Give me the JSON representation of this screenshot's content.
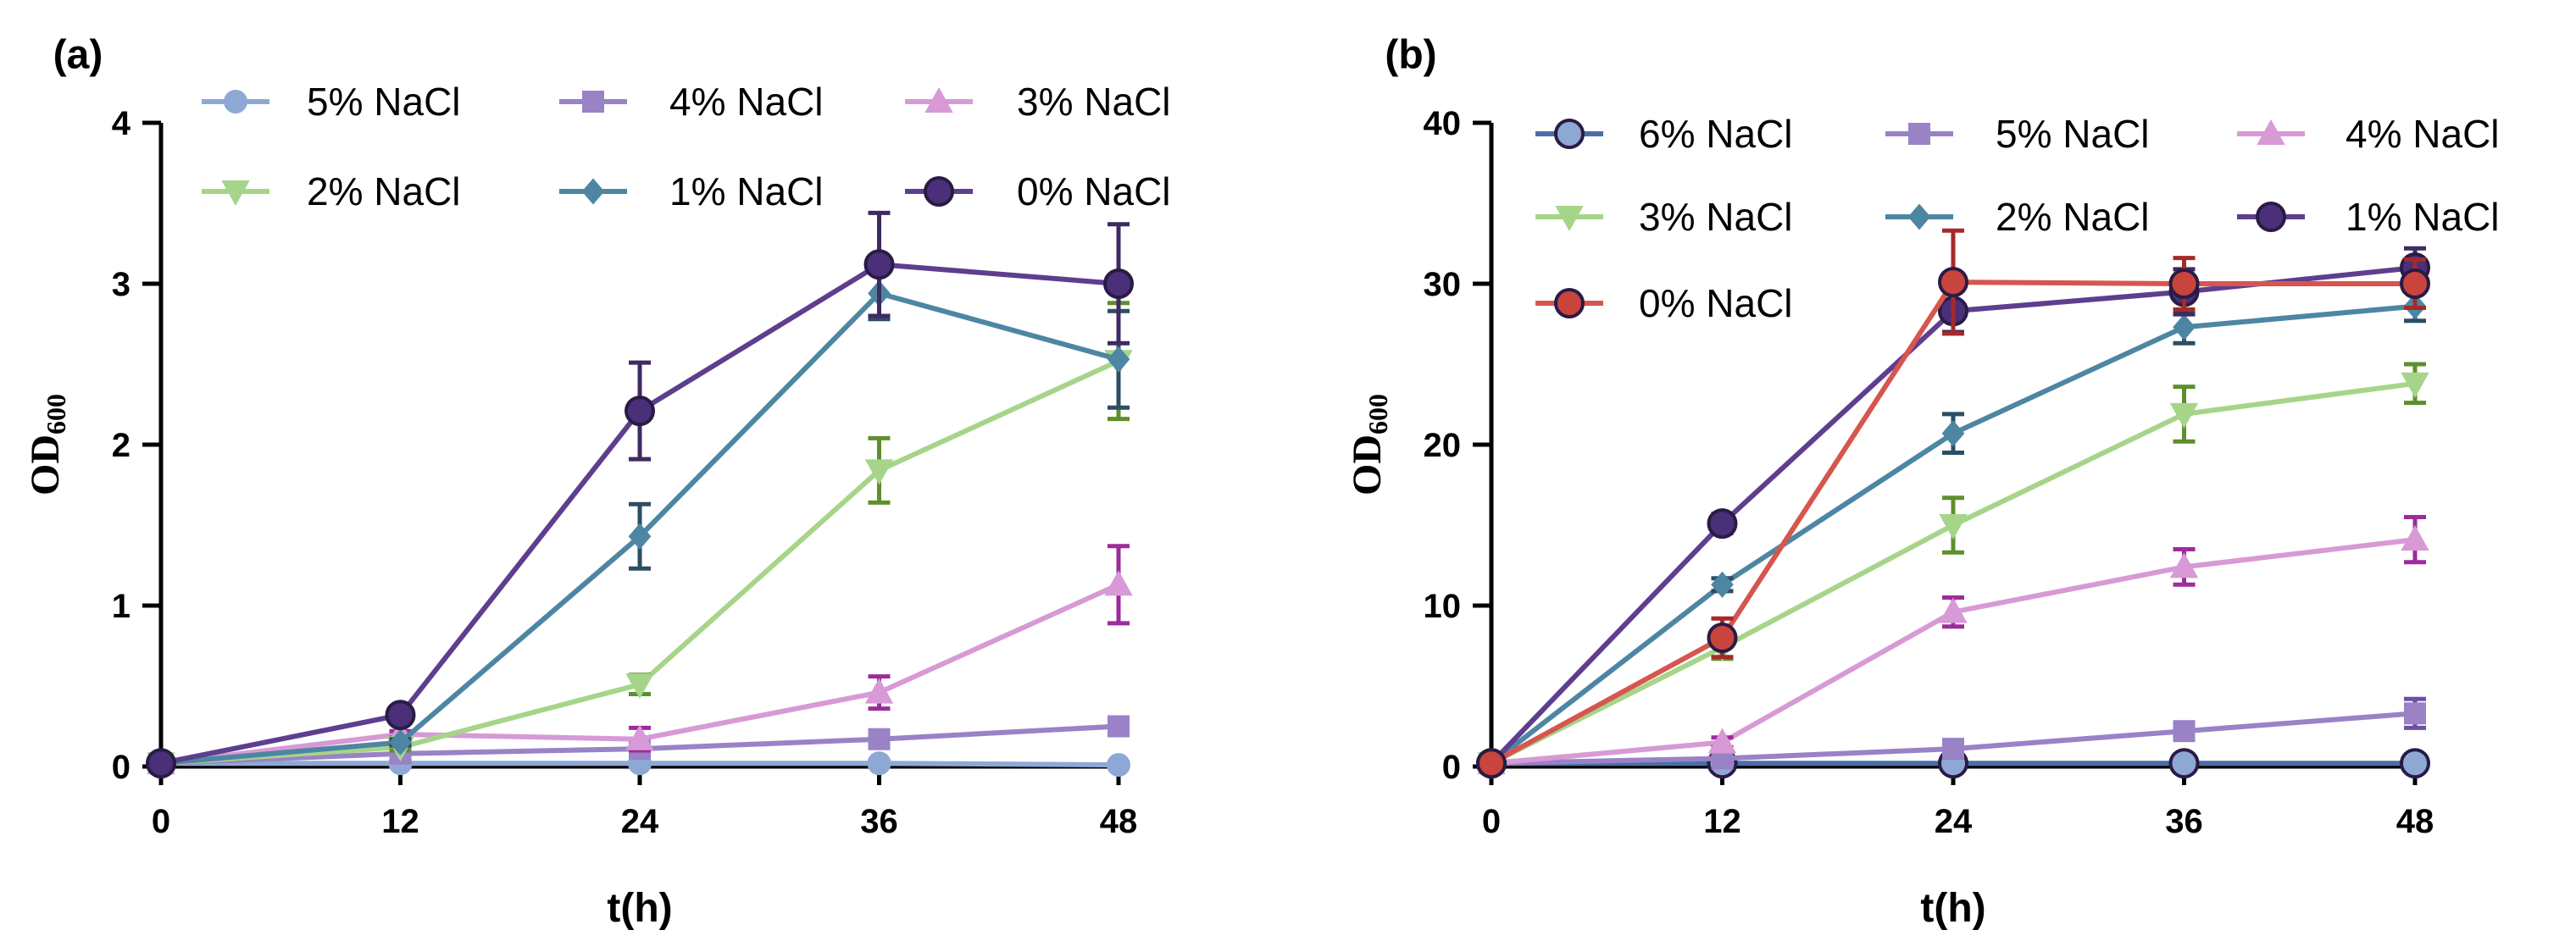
{
  "chart_data": [
    {
      "type": "line",
      "panel_label": "(a)",
      "xlabel": "t(h)",
      "ylabel": "OD",
      "ylabel_subscript": "600",
      "x": [
        0,
        12,
        24,
        36,
        48
      ],
      "xticks": [
        "0",
        "12",
        "24",
        "36",
        "48"
      ],
      "xlim": [
        0,
        48
      ],
      "yticks": [
        "0",
        "1",
        "2",
        "3",
        "4"
      ],
      "ylim": [
        0,
        4
      ],
      "legend_position": "top",
      "series": [
        {
          "name": "5% NaCl",
          "values": [
            0.02,
            0.02,
            0.02,
            0.02,
            0.01
          ],
          "err": [
            0,
            0,
            0,
            0,
            0
          ],
          "color": "#8ea8d6",
          "marker": "circle"
        },
        {
          "name": "4% NaCl",
          "values": [
            0.02,
            0.08,
            0.11,
            0.17,
            0.25
          ],
          "err": [
            0,
            0.01,
            0.02,
            0.03,
            0.03
          ],
          "color": "#9a82c6",
          "marker": "square"
        },
        {
          "name": "3% NaCl",
          "values": [
            0.02,
            0.2,
            0.17,
            0.46,
            1.13
          ],
          "err": [
            0,
            0.02,
            0.07,
            0.1,
            0.24
          ],
          "color": "#d79ad6",
          "errcolor": "#9e2b9b",
          "marker": "triangle-up"
        },
        {
          "name": "2% NaCl",
          "values": [
            0.02,
            0.12,
            0.51,
            1.84,
            2.52
          ],
          "err": [
            0,
            0.02,
            0.06,
            0.2,
            0.36
          ],
          "color": "#a6d58a",
          "errcolor": "#5e8f2d",
          "marker": "triangle-down"
        },
        {
          "name": "1% NaCl",
          "values": [
            0.02,
            0.15,
            1.43,
            2.94,
            2.53
          ],
          "err": [
            0,
            0.02,
            0.2,
            0.16,
            0.3
          ],
          "color": "#4d86a3",
          "errcolor": "#2c4e63",
          "marker": "diamond"
        },
        {
          "name": "0% NaCl",
          "values": [
            0.02,
            0.32,
            2.21,
            3.12,
            3.0
          ],
          "err": [
            0,
            0.03,
            0.3,
            0.32,
            0.37
          ],
          "color": "#5e3e8e",
          "errcolor": "#3f2a63",
          "fill": "#4a2f79",
          "marker": "circle-big"
        }
      ]
    },
    {
      "type": "line",
      "panel_label": "(b)",
      "xlabel": "t(h)",
      "ylabel": "OD",
      "ylabel_subscript": "600",
      "x": [
        0,
        12,
        24,
        36,
        48
      ],
      "xticks": [
        "0",
        "12",
        "24",
        "36",
        "48"
      ],
      "xlim": [
        0,
        48
      ],
      "yticks": [
        "0",
        "10",
        "20",
        "30",
        "40"
      ],
      "ylim": [
        0,
        40
      ],
      "legend_position": "top",
      "series": [
        {
          "name": "6% NaCl",
          "values": [
            0.2,
            0.2,
            0.2,
            0.2,
            0.2
          ],
          "err": [
            0,
            0,
            0,
            0,
            0
          ],
          "color": "#4a6ea8",
          "fill": "#8ea8d6",
          "marker": "circle-big"
        },
        {
          "name": "5% NaCl",
          "values": [
            0.2,
            0.5,
            1.1,
            2.2,
            3.3
          ],
          "err": [
            0,
            0.2,
            0.3,
            0.5,
            0.9
          ],
          "color": "#9a82c6",
          "errcolor": "#6d4fa3",
          "marker": "square"
        },
        {
          "name": "4% NaCl",
          "values": [
            0.2,
            1.5,
            9.6,
            12.4,
            14.1
          ],
          "err": [
            0,
            0.3,
            0.9,
            1.1,
            1.4
          ],
          "color": "#d79ad6",
          "errcolor": "#9e2b9b",
          "marker": "triangle-up"
        },
        {
          "name": "3% NaCl",
          "values": [
            0.2,
            7.4,
            15.0,
            21.9,
            23.8
          ],
          "err": [
            0,
            0.7,
            1.7,
            1.7,
            1.2
          ],
          "color": "#a6d58a",
          "errcolor": "#5e8f2d",
          "marker": "triangle-down"
        },
        {
          "name": "2% NaCl",
          "values": [
            0.2,
            11.3,
            20.7,
            27.3,
            28.6
          ],
          "err": [
            0,
            0.4,
            1.2,
            1.0,
            0.9
          ],
          "color": "#4d86a3",
          "errcolor": "#2c4e63",
          "marker": "diamond"
        },
        {
          "name": "1% NaCl",
          "values": [
            0.2,
            15.1,
            28.3,
            29.5,
            31.0
          ],
          "err": [
            0,
            0.6,
            1.3,
            1.4,
            1.2
          ],
          "color": "#5e3e8e",
          "errcolor": "#3f2a63",
          "fill": "#4a2f79",
          "marker": "circle-big"
        },
        {
          "name": "0% NaCl",
          "values": [
            0.2,
            8.0,
            30.1,
            30.0,
            30.0
          ],
          "err": [
            0,
            1.2,
            3.2,
            1.6,
            1.5
          ],
          "color": "#d6564f",
          "errcolor": "#a52a2a",
          "fill": "#c9443c",
          "marker": "circle-big"
        }
      ]
    }
  ]
}
